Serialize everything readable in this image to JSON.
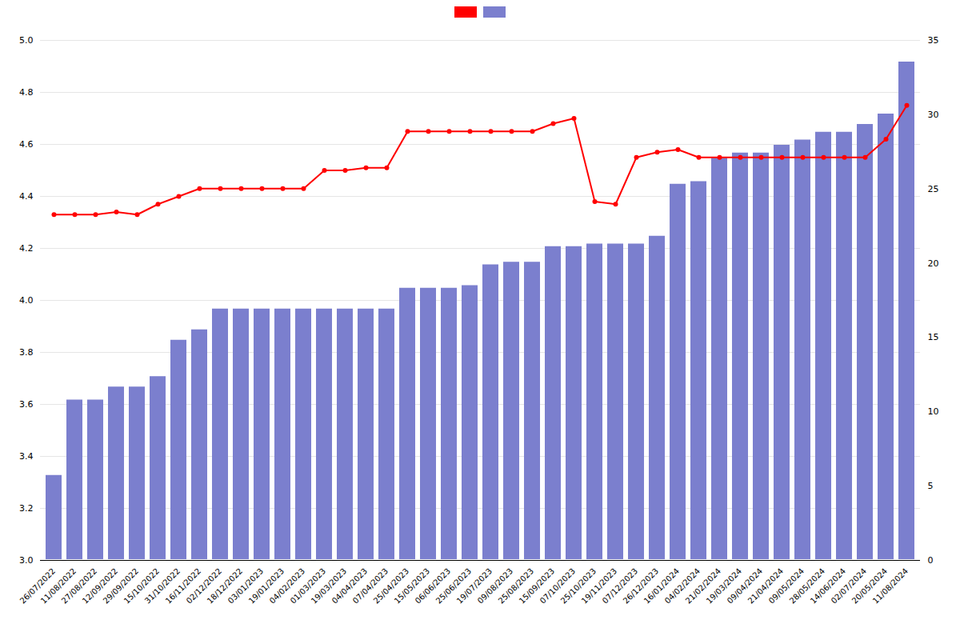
{
  "chart_data": {
    "type": "bar",
    "categories": [
      "26/07/2022",
      "11/08/2022",
      "27/08/2022",
      "12/09/2022",
      "29/09/2022",
      "15/10/2022",
      "31/10/2022",
      "16/11/2022",
      "02/12/2022",
      "18/12/2022",
      "03/01/2023",
      "19/01/2023",
      "04/02/2023",
      "01/03/2023",
      "19/03/2023",
      "04/04/2023",
      "07/04/2023",
      "25/04/2023",
      "15/05/2023",
      "06/06/2023",
      "25/06/2023",
      "19/07/2023",
      "09/08/2023",
      "25/08/2023",
      "15/09/2023",
      "07/10/2023",
      "25/10/2023",
      "19/11/2023",
      "07/12/2023",
      "26/12/2023",
      "16/01/2024",
      "04/02/2024",
      "21/02/2024",
      "19/03/2024",
      "09/04/2024",
      "21/04/2024",
      "09/05/2024",
      "28/05/2024",
      "14/06/2024",
      "02/07/2024",
      "20/05/2024",
      "11/08/2024"
    ],
    "series": [
      {
        "type": "bar",
        "color": "#7b7fce",
        "values": [
          3.33,
          3.62,
          3.62,
          3.67,
          3.67,
          3.71,
          3.85,
          3.89,
          3.97,
          3.97,
          3.97,
          3.97,
          3.97,
          3.97,
          3.97,
          3.97,
          3.97,
          4.05,
          4.05,
          4.05,
          4.06,
          4.14,
          4.15,
          4.15,
          4.21,
          4.21,
          4.22,
          4.22,
          4.22,
          4.25,
          4.45,
          4.46,
          4.55,
          4.57,
          4.57,
          4.6,
          4.62,
          4.65,
          4.65,
          4.68,
          4.72,
          4.92
        ]
      },
      {
        "type": "line",
        "color": "#ff0000",
        "marker": "circle",
        "values": [
          4.33,
          4.33,
          4.33,
          4.34,
          4.33,
          4.37,
          4.4,
          4.43,
          4.43,
          4.43,
          4.43,
          4.43,
          4.43,
          4.5,
          4.5,
          4.51,
          4.51,
          4.65,
          4.65,
          4.65,
          4.65,
          4.65,
          4.65,
          4.65,
          4.68,
          4.7,
          4.38,
          4.37,
          4.55,
          4.57,
          4.58,
          4.55,
          4.55,
          4.55,
          4.55,
          4.55,
          4.55,
          4.55,
          4.55,
          4.55,
          4.62,
          4.75
        ]
      }
    ],
    "ylim": [
      3.0,
      5.0
    ],
    "yticks": [
      {
        "value": 3.0,
        "label": "3.0"
      },
      3.2,
      3.4,
      3.6,
      3.8,
      {
        "value": 4.0,
        "label": "4.0"
      },
      4.2,
      4.4,
      4.6,
      4.8,
      {
        "value": 5.0,
        "label": "5.0"
      }
    ],
    "y2lim": [
      0,
      35
    ],
    "y2ticks": [
      0,
      5,
      10,
      15,
      20,
      25,
      30,
      35
    ],
    "grid": true,
    "legend": "top"
  }
}
